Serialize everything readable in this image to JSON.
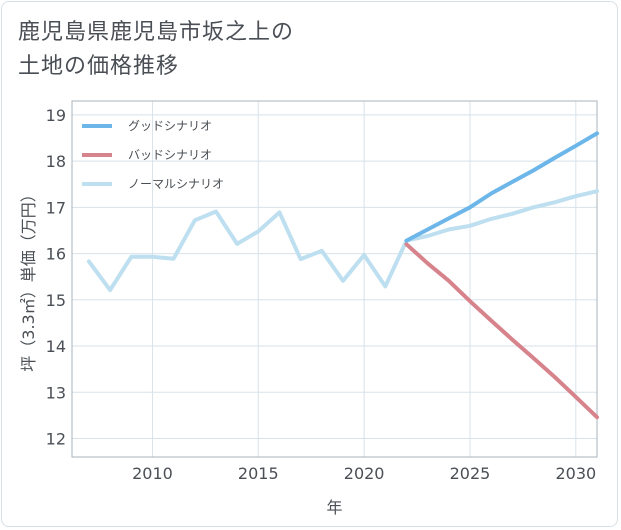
{
  "title_lines": [
    "鹿児島県鹿児島市坂之上の",
    "土地の価格推移"
  ],
  "chart_data": {
    "type": "line",
    "xlabel": "年",
    "ylabel": "坪（3.3㎡）単価（万円）",
    "xlim": [
      2006.2,
      2031
    ],
    "ylim": [
      11.6,
      19.3
    ],
    "x_ticks": [
      2010,
      2015,
      2020,
      2025,
      2030
    ],
    "y_ticks": [
      12,
      13,
      14,
      15,
      16,
      17,
      18,
      19
    ],
    "grid": true,
    "legend_position": "top-left",
    "series": [
      {
        "name": "グッドシナリオ",
        "color": "#6cb6ea",
        "x": [
          2022,
          2023,
          2024,
          2025,
          2026,
          2027,
          2028,
          2029,
          2030,
          2031
        ],
        "y": [
          16.28,
          16.52,
          16.76,
          17.0,
          17.3,
          17.55,
          17.8,
          18.07,
          18.33,
          18.6
        ]
      },
      {
        "name": "バッドシナリオ",
        "color": "#d6838c",
        "x": [
          2022,
          2023,
          2024,
          2025,
          2026,
          2027,
          2028,
          2029,
          2030,
          2031
        ],
        "y": [
          16.2,
          15.79,
          15.41,
          14.97,
          14.55,
          14.14,
          13.74,
          13.33,
          12.9,
          12.46
        ]
      },
      {
        "name": "ノーマルシナリオ",
        "color": "#bddff0",
        "x": [
          2007,
          2008,
          2009,
          2010,
          2011,
          2012,
          2013,
          2014,
          2015,
          2016,
          2017,
          2018,
          2019,
          2020,
          2021,
          2022,
          2023,
          2024,
          2025,
          2026,
          2027,
          2028,
          2029,
          2030,
          2031
        ],
        "y": [
          15.83,
          15.21,
          15.93,
          15.93,
          15.89,
          16.72,
          16.91,
          16.21,
          16.48,
          16.89,
          15.88,
          16.06,
          15.41,
          15.97,
          15.29,
          16.28,
          16.38,
          16.52,
          16.6,
          16.75,
          16.86,
          17.0,
          17.11,
          17.24,
          17.35
        ]
      }
    ]
  }
}
